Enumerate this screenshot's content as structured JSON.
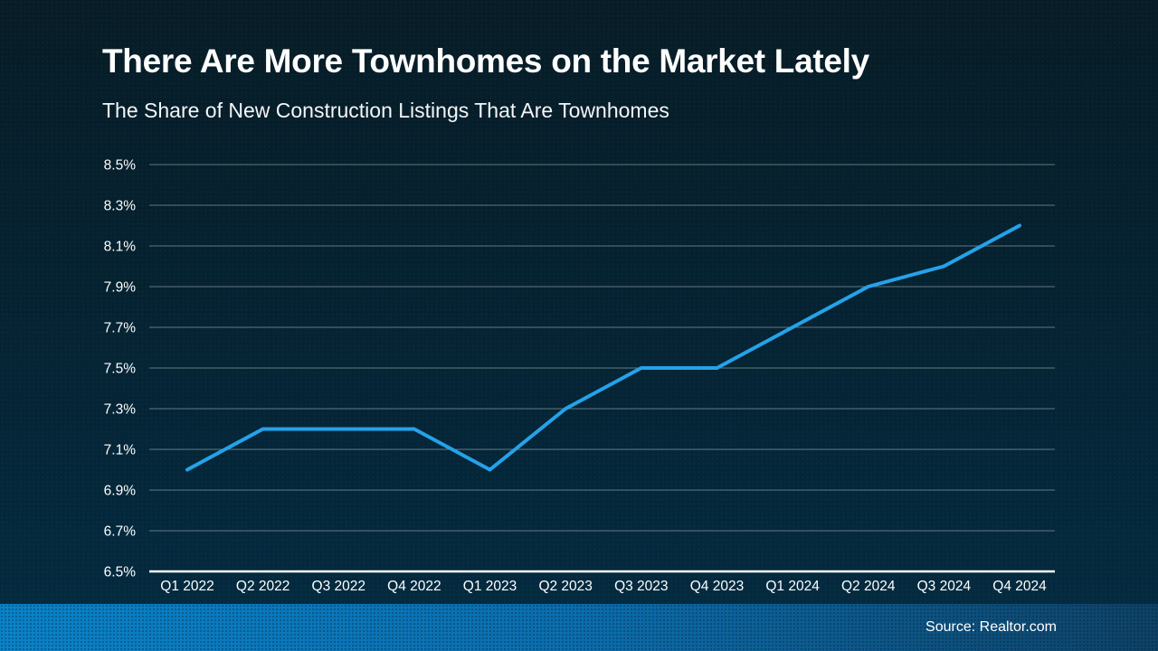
{
  "slide": {
    "title": "There Are More Townhomes on the Market Lately",
    "subtitle": "The Share of New Construction Listings That Are Townhomes",
    "source": "Source: Realtor.com"
  },
  "colors": {
    "background_top": "#071c26",
    "background_bottom": "#042b41",
    "line": "#25a2e9",
    "gridline": "#aeb9c0",
    "axis_line": "#ffffff",
    "text": "#ffffff",
    "footer_gradient_left": "#0a82c8",
    "footer_gradient_right": "#0e4165"
  },
  "chart_data": {
    "type": "line",
    "title": "There Are More Townhomes on the Market Lately",
    "subtitle": "The Share of New Construction Listings That Are Townhomes",
    "categories": [
      "Q1 2022",
      "Q2 2022",
      "Q3 2022",
      "Q4 2022",
      "Q1 2023",
      "Q2 2023",
      "Q3 2023",
      "Q4 2023",
      "Q1 2024",
      "Q2 2024",
      "Q3 2024",
      "Q4 2024"
    ],
    "values": [
      7.0,
      7.2,
      7.2,
      7.2,
      7.0,
      7.3,
      7.5,
      7.5,
      7.7,
      7.9,
      8.0,
      8.2
    ],
    "xlabel": "",
    "ylabel": "",
    "ylim": [
      6.5,
      8.5
    ],
    "ytick_step": 0.2,
    "ytick_suffix": "%",
    "grid": true,
    "legend": "none",
    "markers": false
  }
}
